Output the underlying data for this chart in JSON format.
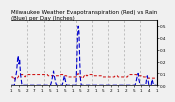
{
  "title": "Milwaukee Weather Evapotranspiration (Red) vs Rain (Blue) per Day (Inches)",
  "line_red_color": "#cc0000",
  "line_blue_color": "#0000cc",
  "background_color": "#f0f0f0",
  "grid_color": "#aaaaaa",
  "ylim": [
    0,
    0.55
  ],
  "yticks": [
    0.0,
    0.1,
    0.2,
    0.3,
    0.4,
    0.5
  ],
  "red_values": [
    0.07,
    0.07,
    0.07,
    0.05,
    0.06,
    0.05,
    0.06,
    0.06,
    0.06,
    0.07,
    0.08,
    0.08,
    0.09,
    0.09,
    0.09,
    0.09,
    0.08,
    0.08,
    0.07,
    0.08,
    0.09,
    0.09,
    0.09,
    0.09,
    0.09,
    0.09,
    0.09,
    0.09,
    0.09,
    0.09,
    0.09,
    0.09,
    0.09,
    0.09,
    0.09,
    0.09,
    0.09,
    0.09,
    0.09,
    0.09,
    0.09,
    0.09,
    0.09,
    0.09,
    0.09,
    0.09,
    0.09,
    0.09,
    0.08,
    0.08,
    0.08,
    0.08,
    0.08,
    0.08,
    0.08,
    0.08,
    0.08,
    0.08,
    0.08,
    0.08,
    0.08,
    0.08,
    0.08,
    0.08,
    0.09,
    0.09,
    0.09,
    0.09,
    0.09,
    0.09,
    0.08,
    0.08,
    0.08,
    0.07,
    0.07,
    0.07,
    0.07,
    0.07,
    0.07,
    0.07,
    0.07,
    0.07,
    0.07,
    0.07,
    0.07,
    0.08,
    0.09,
    0.1,
    0.08,
    0.07,
    0.07,
    0.07,
    0.06,
    0.06,
    0.07,
    0.08,
    0.09,
    0.09,
    0.08,
    0.08,
    0.09,
    0.09,
    0.09,
    0.09,
    0.09,
    0.09,
    0.09,
    0.09,
    0.08,
    0.08,
    0.08,
    0.08,
    0.08,
    0.08,
    0.08,
    0.08,
    0.08,
    0.08,
    0.08,
    0.07,
    0.07,
    0.07,
    0.07,
    0.07,
    0.07,
    0.07,
    0.07,
    0.07,
    0.07,
    0.07,
    0.07,
    0.07,
    0.07,
    0.07,
    0.07,
    0.08,
    0.08,
    0.08,
    0.08,
    0.07,
    0.07,
    0.07,
    0.07,
    0.07,
    0.07,
    0.07,
    0.07,
    0.07,
    0.07,
    0.07,
    0.07,
    0.07,
    0.08,
    0.08,
    0.09,
    0.09,
    0.09,
    0.09,
    0.09,
    0.09,
    0.09,
    0.09,
    0.09,
    0.09,
    0.08,
    0.08,
    0.08,
    0.08,
    0.08,
    0.08,
    0.08,
    0.08,
    0.07,
    0.07,
    0.07,
    0.07,
    0.07,
    0.06,
    0.06,
    0.06,
    0.06,
    0.06,
    0.06,
    0.06,
    0.06,
    0.06,
    0.06,
    0.06,
    0.06,
    0.06
  ],
  "blue_values": [
    0.0,
    0.0,
    0.0,
    0.0,
    0.0,
    0.05,
    0.08,
    0.12,
    0.2,
    0.25,
    0.18,
    0.22,
    0.1,
    0.05,
    0.0,
    0.0,
    0.0,
    0.0,
    0.0,
    0.0,
    0.0,
    0.0,
    0.0,
    0.0,
    0.0,
    0.0,
    0.0,
    0.0,
    0.0,
    0.0,
    0.0,
    0.0,
    0.0,
    0.0,
    0.0,
    0.0,
    0.0,
    0.0,
    0.0,
    0.0,
    0.0,
    0.0,
    0.0,
    0.0,
    0.0,
    0.0,
    0.0,
    0.0,
    0.0,
    0.0,
    0.0,
    0.0,
    0.02,
    0.05,
    0.08,
    0.12,
    0.08,
    0.05,
    0.02,
    0.0,
    0.0,
    0.0,
    0.0,
    0.0,
    0.0,
    0.0,
    0.0,
    0.02,
    0.05,
    0.08,
    0.05,
    0.02,
    0.0,
    0.0,
    0.0,
    0.0,
    0.0,
    0.0,
    0.0,
    0.0,
    0.0,
    0.0,
    0.0,
    0.0,
    0.0,
    0.15,
    0.4,
    0.5,
    0.45,
    0.2,
    0.05,
    0.0,
    0.0,
    0.0,
    0.0,
    0.0,
    0.0,
    0.0,
    0.0,
    0.0,
    0.0,
    0.0,
    0.0,
    0.0,
    0.0,
    0.0,
    0.0,
    0.0,
    0.0,
    0.0,
    0.0,
    0.0,
    0.0,
    0.0,
    0.0,
    0.0,
    0.0,
    0.0,
    0.0,
    0.0,
    0.0,
    0.0,
    0.0,
    0.0,
    0.0,
    0.0,
    0.0,
    0.0,
    0.0,
    0.0,
    0.0,
    0.0,
    0.0,
    0.0,
    0.0,
    0.0,
    0.0,
    0.0,
    0.0,
    0.0,
    0.0,
    0.0,
    0.0,
    0.0,
    0.0,
    0.0,
    0.0,
    0.0,
    0.0,
    0.0,
    0.0,
    0.0,
    0.0,
    0.0,
    0.0,
    0.0,
    0.0,
    0.0,
    0.0,
    0.0,
    0.0,
    0.0,
    0.02,
    0.05,
    0.08,
    0.1,
    0.05,
    0.02,
    0.0,
    0.0,
    0.0,
    0.0,
    0.0,
    0.0,
    0.0,
    0.0,
    0.05,
    0.08,
    0.04,
    0.0,
    0.0,
    0.0,
    0.0,
    0.05,
    0.03,
    0.0,
    0.0,
    0.0,
    0.0,
    0.0
  ],
  "n_gridlines": 8,
  "title_fontsize": 4.0,
  "tick_fontsize": 3.0
}
